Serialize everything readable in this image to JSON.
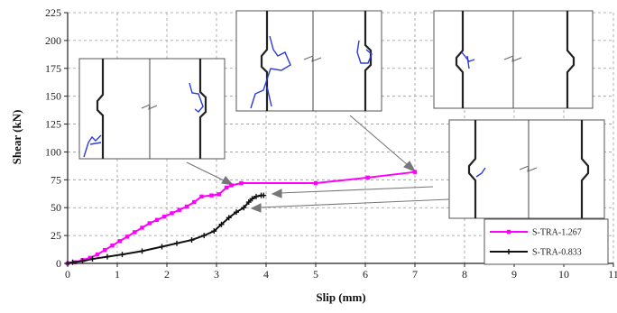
{
  "chart_data": {
    "type": "line",
    "title": "",
    "xlabel": "Slip (mm)",
    "ylabel": "Shear (kN)",
    "xlim": [
      0,
      11
    ],
    "ylim": [
      0,
      225
    ],
    "xticks": [
      "0",
      "1",
      "2",
      "3",
      "4",
      "5",
      "6",
      "7",
      "8",
      "9",
      "10",
      "11"
    ],
    "yticks": [
      "0",
      "25",
      "50",
      "75",
      "100",
      "125",
      "150",
      "175",
      "200",
      "225"
    ],
    "grid": true,
    "legend_position": "bottom-right",
    "series": [
      {
        "name": "S-TRA-1.267",
        "color": "#ff00ff",
        "marker": "square",
        "x": [
          0,
          0.15,
          0.3,
          0.45,
          0.6,
          0.75,
          0.9,
          1.05,
          1.2,
          1.35,
          1.5,
          1.65,
          1.8,
          1.95,
          2.1,
          2.25,
          2.4,
          2.55,
          2.7,
          2.9,
          3.05,
          3.2,
          3.3,
          3.5,
          5.0,
          6.05,
          7.0
        ],
        "y": [
          0,
          1,
          3,
          5,
          8,
          12,
          16,
          20,
          24,
          28,
          32,
          36,
          39,
          42,
          45,
          48,
          51,
          55,
          60,
          61,
          62,
          68,
          70,
          72,
          72,
          77,
          82
        ]
      },
      {
        "name": "S-TRA-0.833",
        "color": "#111111",
        "marker": "cross",
        "x": [
          0,
          0.1,
          0.3,
          0.5,
          0.8,
          1.1,
          1.5,
          1.9,
          2.2,
          2.5,
          2.75,
          2.95,
          3.1,
          3.25,
          3.4,
          3.55,
          3.65,
          3.72,
          3.8,
          3.9,
          3.95
        ],
        "y": [
          0,
          1,
          2,
          4,
          6,
          8,
          11,
          15,
          18,
          21,
          25,
          29,
          35,
          41,
          46,
          50,
          55,
          58,
          60,
          61,
          61
        ]
      }
    ]
  }
}
